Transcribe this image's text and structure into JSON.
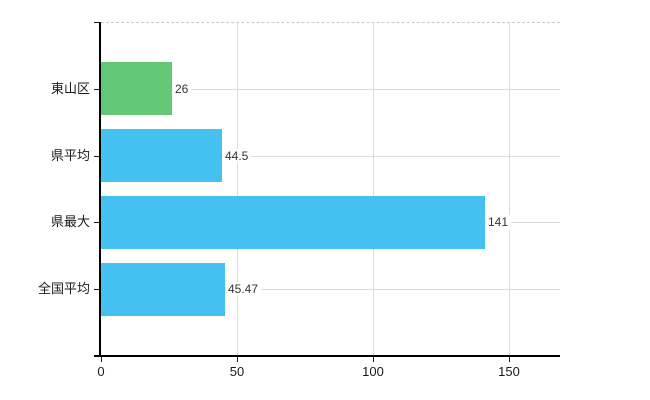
{
  "chart_data": {
    "type": "bar",
    "orientation": "horizontal",
    "title": "",
    "categories": [
      "東山区",
      "県平均",
      "県最大",
      "全国平均"
    ],
    "values": [
      26,
      44.5,
      141,
      45.47
    ],
    "value_labels": [
      "26",
      "44.5",
      "141",
      "45.47"
    ],
    "bar_colors": [
      "#62c877",
      "#44c1f1",
      "#44c1f1",
      "#44c1f1"
    ],
    "x_ticks": [
      {
        "value": 0,
        "label": "0"
      },
      {
        "value": 50,
        "label": "50"
      },
      {
        "value": 100,
        "label": "100"
      },
      {
        "value": 150,
        "label": "150"
      }
    ],
    "xlim": [
      0,
      168.8
    ],
    "grid": true,
    "legend": "none",
    "colors": {
      "highlight_bar": "#62c877",
      "default_bar": "#44c1f1",
      "gridline": "#dcdcdc",
      "top_dashed_line": "#c9c9c9",
      "axis": "#000000",
      "value_text": "#333333",
      "tick_text": "#1a1a1a",
      "background": "#ffffff"
    }
  }
}
